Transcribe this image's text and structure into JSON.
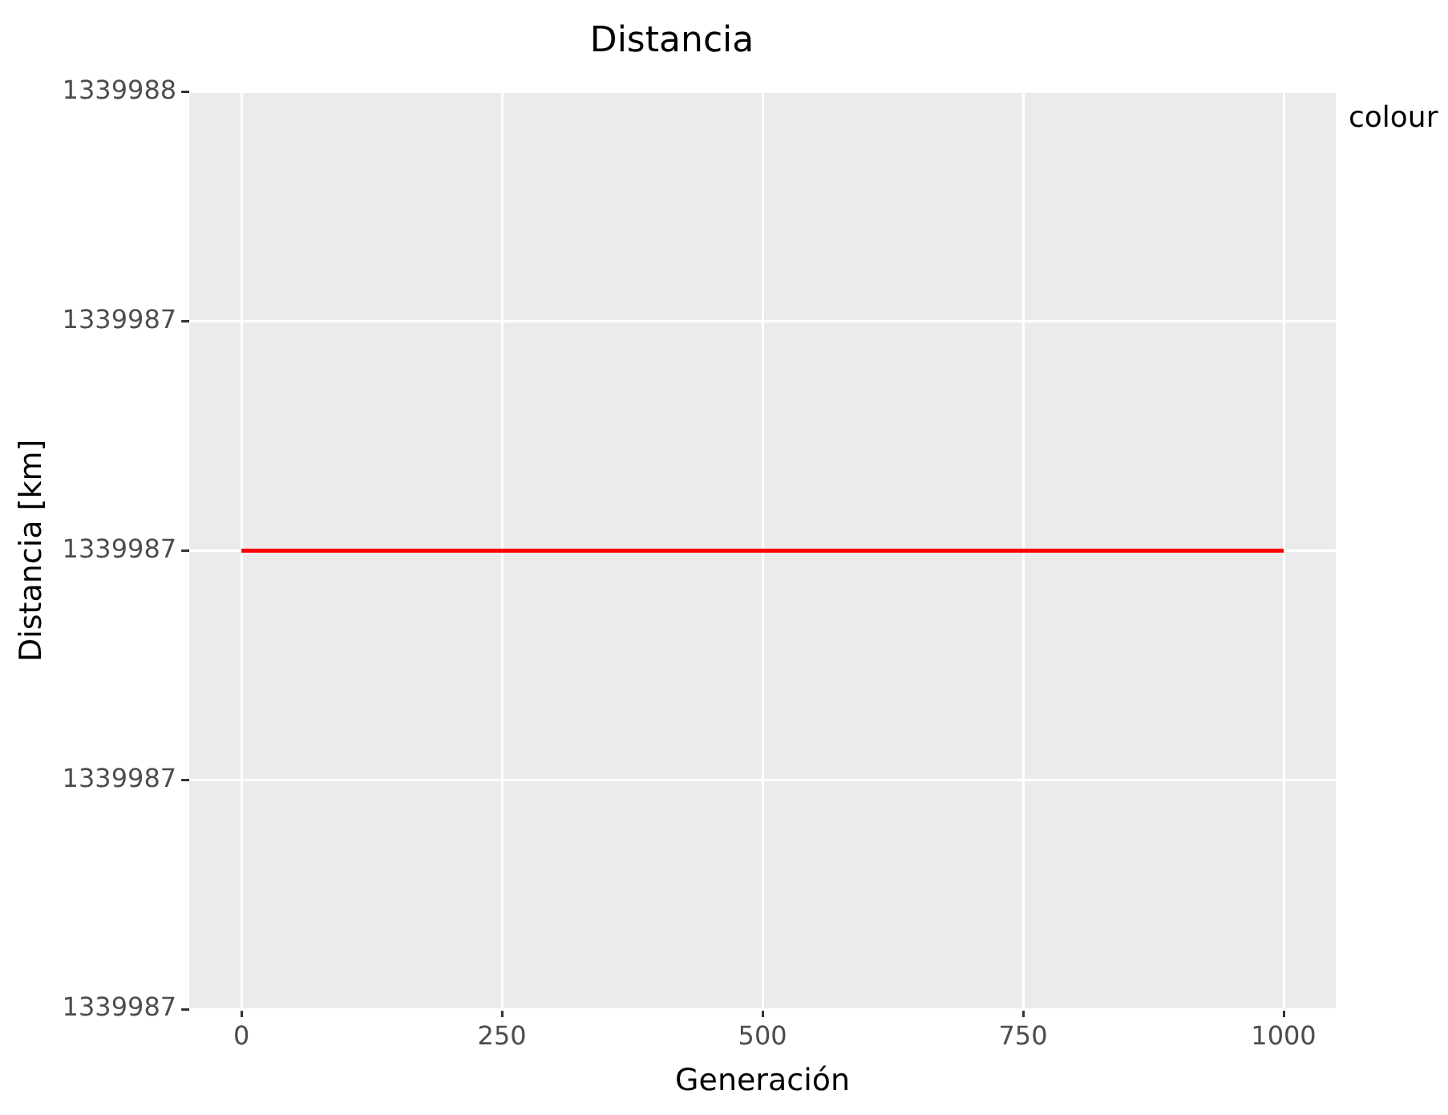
{
  "chart_data": {
    "type": "line",
    "title": "Distancia",
    "xlabel": "Generación",
    "ylabel": "Distancia [km]",
    "legend_title": "colour",
    "x": [
      0,
      1000
    ],
    "series": [
      {
        "color": "#ff0000",
        "values": [
          1339987.0,
          1339987.0
        ]
      }
    ],
    "xlim": [
      -50,
      1050
    ],
    "xticks": [
      0,
      250,
      500,
      750,
      1000
    ],
    "ylim": [
      1339986.5,
      1339987.5
    ],
    "yticks": [
      {
        "value": 1339986.5,
        "label": "1339987"
      },
      {
        "value": 1339986.75,
        "label": "1339987"
      },
      {
        "value": 1339987.0,
        "label": "1339987"
      },
      {
        "value": 1339987.25,
        "label": "1339987"
      },
      {
        "value": 1339987.5,
        "label": "1339988"
      }
    ],
    "grid": true,
    "legend": false,
    "marker": "none",
    "line_style": "solid"
  }
}
